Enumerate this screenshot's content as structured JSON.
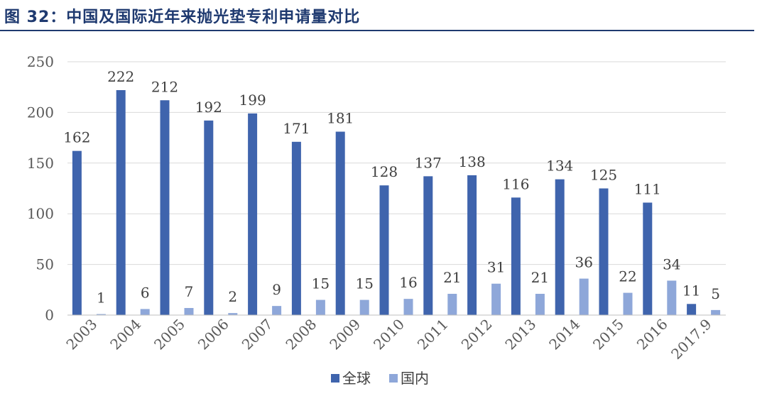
{
  "figure": {
    "title": "图 32：中国及国际近年来抛光垫专利申请量对比"
  },
  "colors": {
    "title": "#1f3a70",
    "global": "#3f64ad",
    "domestic": "#8ea7d9",
    "grid": "#d9d9d9"
  },
  "chart_data": {
    "type": "bar",
    "categories": [
      "2003",
      "2004",
      "2005",
      "2006",
      "2007",
      "2008",
      "2009",
      "2010",
      "2011",
      "2012",
      "2013",
      "2014",
      "2015",
      "2016",
      "2017.9"
    ],
    "series": [
      {
        "name": "全球",
        "values": [
          162,
          222,
          212,
          192,
          199,
          171,
          181,
          128,
          137,
          138,
          116,
          134,
          125,
          111,
          11
        ]
      },
      {
        "name": "国内",
        "values": [
          1,
          6,
          7,
          2,
          9,
          15,
          15,
          16,
          21,
          31,
          21,
          36,
          22,
          34,
          5
        ]
      }
    ],
    "yticks": [
      0,
      50,
      100,
      150,
      200,
      250
    ],
    "ylim": [
      0,
      250
    ],
    "grid": true,
    "legend_position": "bottom",
    "data_labels": true
  }
}
